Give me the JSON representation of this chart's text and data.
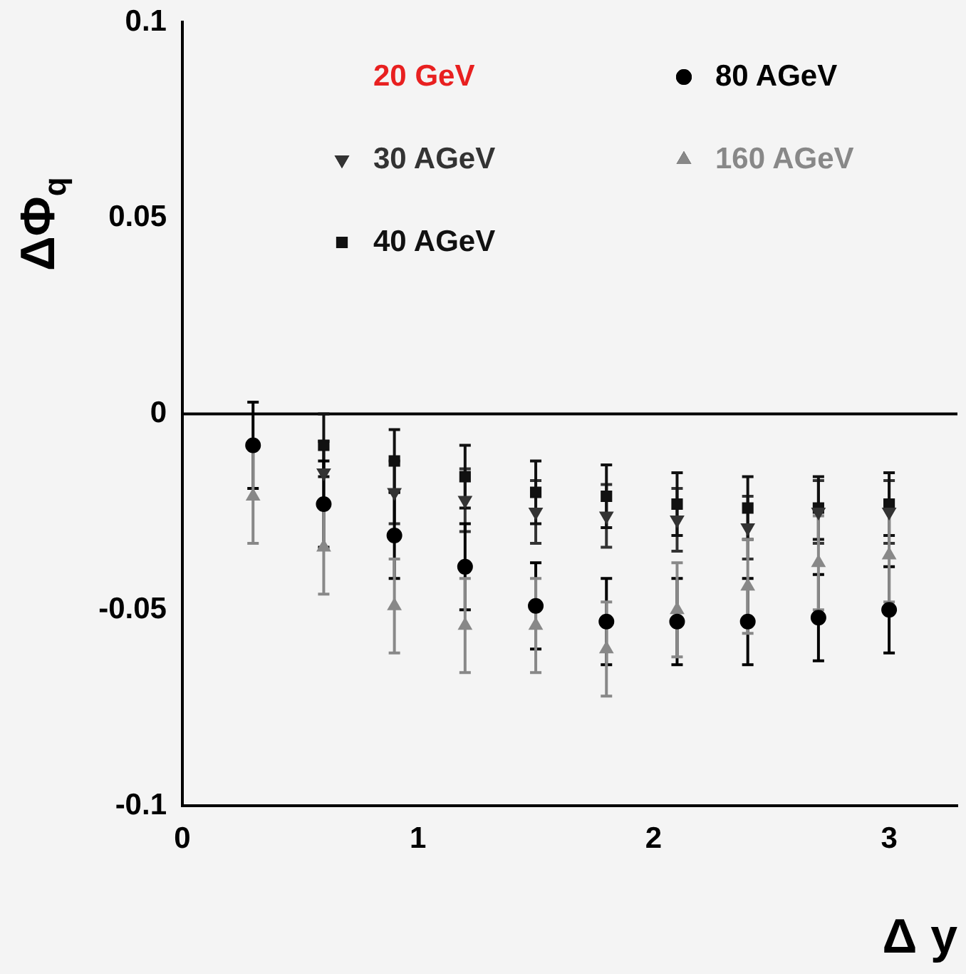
{
  "chart_data": {
    "type": "scatter",
    "xlabel": "Δ y",
    "ylabel": "ΔΦ$_{q}$",
    "xlim": [
      0,
      3.29
    ],
    "xticks": [
      0,
      1,
      2,
      3
    ],
    "ylim": [
      -0.1,
      0.1
    ],
    "yticks": [
      -0.1,
      -0.05,
      0,
      0.05,
      0.1
    ],
    "annotations": [
      "20 GeV"
    ],
    "legend": "top",
    "grid": false,
    "ref_lines": [
      {
        "axis": "y",
        "value": 0,
        "color": "#000000"
      }
    ],
    "series": [
      {
        "name": "30 AGeV",
        "color": "#333333",
        "marker": "triangle-down",
        "x": [
          0.6,
          0.9,
          1.2,
          1.5,
          1.8,
          2.1,
          2.4,
          2.7,
          3.0
        ],
        "values": [
          -0.015,
          -0.02,
          -0.022,
          -0.025,
          -0.026,
          -0.027,
          -0.029,
          -0.025,
          -0.025
        ],
        "errors": [
          0.008,
          0.008,
          0.008,
          0.008,
          0.008,
          0.008,
          0.008,
          0.008,
          0.008
        ]
      },
      {
        "name": "40 AGeV",
        "color": "#111111",
        "marker": "square",
        "x": [
          0.6,
          0.9,
          1.2,
          1.5,
          1.8,
          2.1,
          2.4,
          2.7,
          3.0
        ],
        "values": [
          -0.008,
          -0.012,
          -0.016,
          -0.02,
          -0.021,
          -0.023,
          -0.024,
          -0.024,
          -0.023
        ],
        "errors": [
          0.008,
          0.008,
          0.008,
          0.008,
          0.008,
          0.008,
          0.008,
          0.008,
          0.008
        ]
      },
      {
        "name": "80 AGeV",
        "color": "#000000",
        "marker": "circle",
        "x": [
          0.3,
          0.6,
          0.9,
          1.2,
          1.5,
          1.8,
          2.1,
          2.4,
          2.7,
          3.0
        ],
        "values": [
          -0.008,
          -0.023,
          -0.031,
          -0.039,
          -0.049,
          -0.053,
          -0.053,
          -0.053,
          -0.052,
          -0.05
        ],
        "errors": [
          0.011,
          0.011,
          0.011,
          0.011,
          0.011,
          0.011,
          0.011,
          0.011,
          0.011,
          0.011
        ]
      },
      {
        "name": "160 AGeV",
        "color": "#888888",
        "marker": "triangle",
        "x": [
          0.3,
          0.6,
          0.9,
          1.2,
          1.5,
          1.8,
          2.1,
          2.4,
          2.7,
          3.0
        ],
        "values": [
          -0.021,
          -0.034,
          -0.049,
          -0.054,
          -0.054,
          -0.06,
          -0.05,
          -0.044,
          -0.038,
          -0.036
        ],
        "errors": [
          0.012,
          0.012,
          0.012,
          0.012,
          0.012,
          0.012,
          0.012,
          0.012,
          0.012,
          0.012
        ]
      }
    ]
  }
}
